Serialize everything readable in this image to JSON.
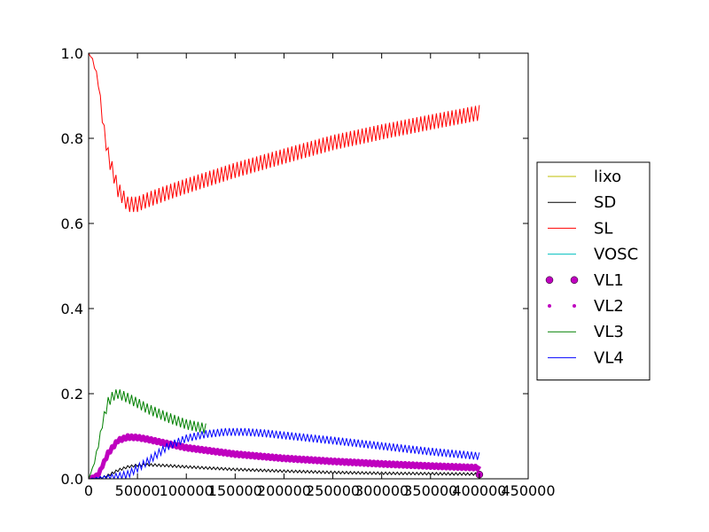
{
  "chart_data": {
    "type": "line",
    "title": "",
    "xlabel": "",
    "ylabel": "",
    "xlim": [
      0,
      450000
    ],
    "ylim": [
      0.0,
      1.0
    ],
    "xticks": [
      0,
      50000,
      100000,
      150000,
      200000,
      250000,
      300000,
      350000,
      400000,
      450000
    ],
    "xtick_labels": [
      "0",
      "50000",
      "100000",
      "150000",
      "200000",
      "250000",
      "300000",
      "350000",
      "400000",
      "450000"
    ],
    "yticks": [
      0.0,
      0.2,
      0.4,
      0.6,
      0.8,
      1.0
    ],
    "ytick_labels": [
      "0.0",
      "0.2",
      "0.4",
      "0.6",
      "0.8",
      "1.0"
    ],
    "grid": false,
    "legend_position": "outside-right",
    "series": [
      {
        "name": "lixo",
        "color": "#bfbf00",
        "style": "line",
        "x": [
          0,
          400000
        ],
        "y": [
          0.0,
          0.0
        ]
      },
      {
        "name": "SD",
        "color": "#000000",
        "style": "line",
        "x": [
          0,
          10000,
          20000,
          30000,
          40000,
          50000,
          60000,
          80000,
          100000,
          150000,
          200000,
          250000,
          300000,
          350000,
          400000
        ],
        "y": [
          0.0,
          0.0,
          0.008,
          0.02,
          0.028,
          0.032,
          0.033,
          0.031,
          0.028,
          0.022,
          0.018,
          0.015,
          0.013,
          0.012,
          0.011
        ]
      },
      {
        "name": "SL",
        "color": "#ff0000",
        "style": "line",
        "x": [
          0,
          5000,
          10000,
          15000,
          20000,
          30000,
          40000,
          50000,
          60000,
          80000,
          100000,
          150000,
          200000,
          250000,
          300000,
          350000,
          400000
        ],
        "y": [
          1.0,
          0.98,
          0.93,
          0.83,
          0.76,
          0.68,
          0.645,
          0.645,
          0.655,
          0.672,
          0.688,
          0.725,
          0.758,
          0.79,
          0.815,
          0.838,
          0.86
        ]
      },
      {
        "name": "VOSC",
        "color": "#00bfbf",
        "style": "line",
        "x": [
          0,
          400000
        ],
        "y": [
          0.0,
          0.0
        ]
      },
      {
        "name": "VL1",
        "color": "#bf00bf",
        "style": "bigdot",
        "x": [
          400000
        ],
        "y": [
          0.01
        ]
      },
      {
        "name": "VL2",
        "color": "#bf00bf",
        "style": "dots",
        "x": [
          0,
          10000,
          20000,
          30000,
          40000,
          50000,
          60000,
          80000,
          100000,
          150000,
          200000,
          250000,
          300000,
          350000,
          400000
        ],
        "y": [
          0.0,
          0.01,
          0.06,
          0.09,
          0.098,
          0.097,
          0.093,
          0.083,
          0.073,
          0.058,
          0.048,
          0.041,
          0.035,
          0.03,
          0.026
        ]
      },
      {
        "name": "VL3",
        "color": "#008000",
        "style": "line",
        "x": [
          0,
          5000,
          10000,
          15000,
          20000,
          25000,
          30000,
          40000,
          50000,
          60000,
          80000,
          100000,
          120000
        ],
        "y": [
          0.0,
          0.03,
          0.08,
          0.14,
          0.18,
          0.195,
          0.2,
          0.19,
          0.178,
          0.165,
          0.145,
          0.128,
          0.118
        ]
      },
      {
        "name": "VL4",
        "color": "#0000ff",
        "style": "line",
        "x": [
          0,
          20000,
          40000,
          60000,
          80000,
          100000,
          120000,
          140000,
          160000,
          180000,
          200000,
          250000,
          300000,
          350000,
          400000
        ],
        "y": [
          0.0,
          0.0,
          0.01,
          0.04,
          0.075,
          0.095,
          0.105,
          0.11,
          0.11,
          0.107,
          0.102,
          0.09,
          0.077,
          0.064,
          0.053
        ]
      }
    ]
  }
}
